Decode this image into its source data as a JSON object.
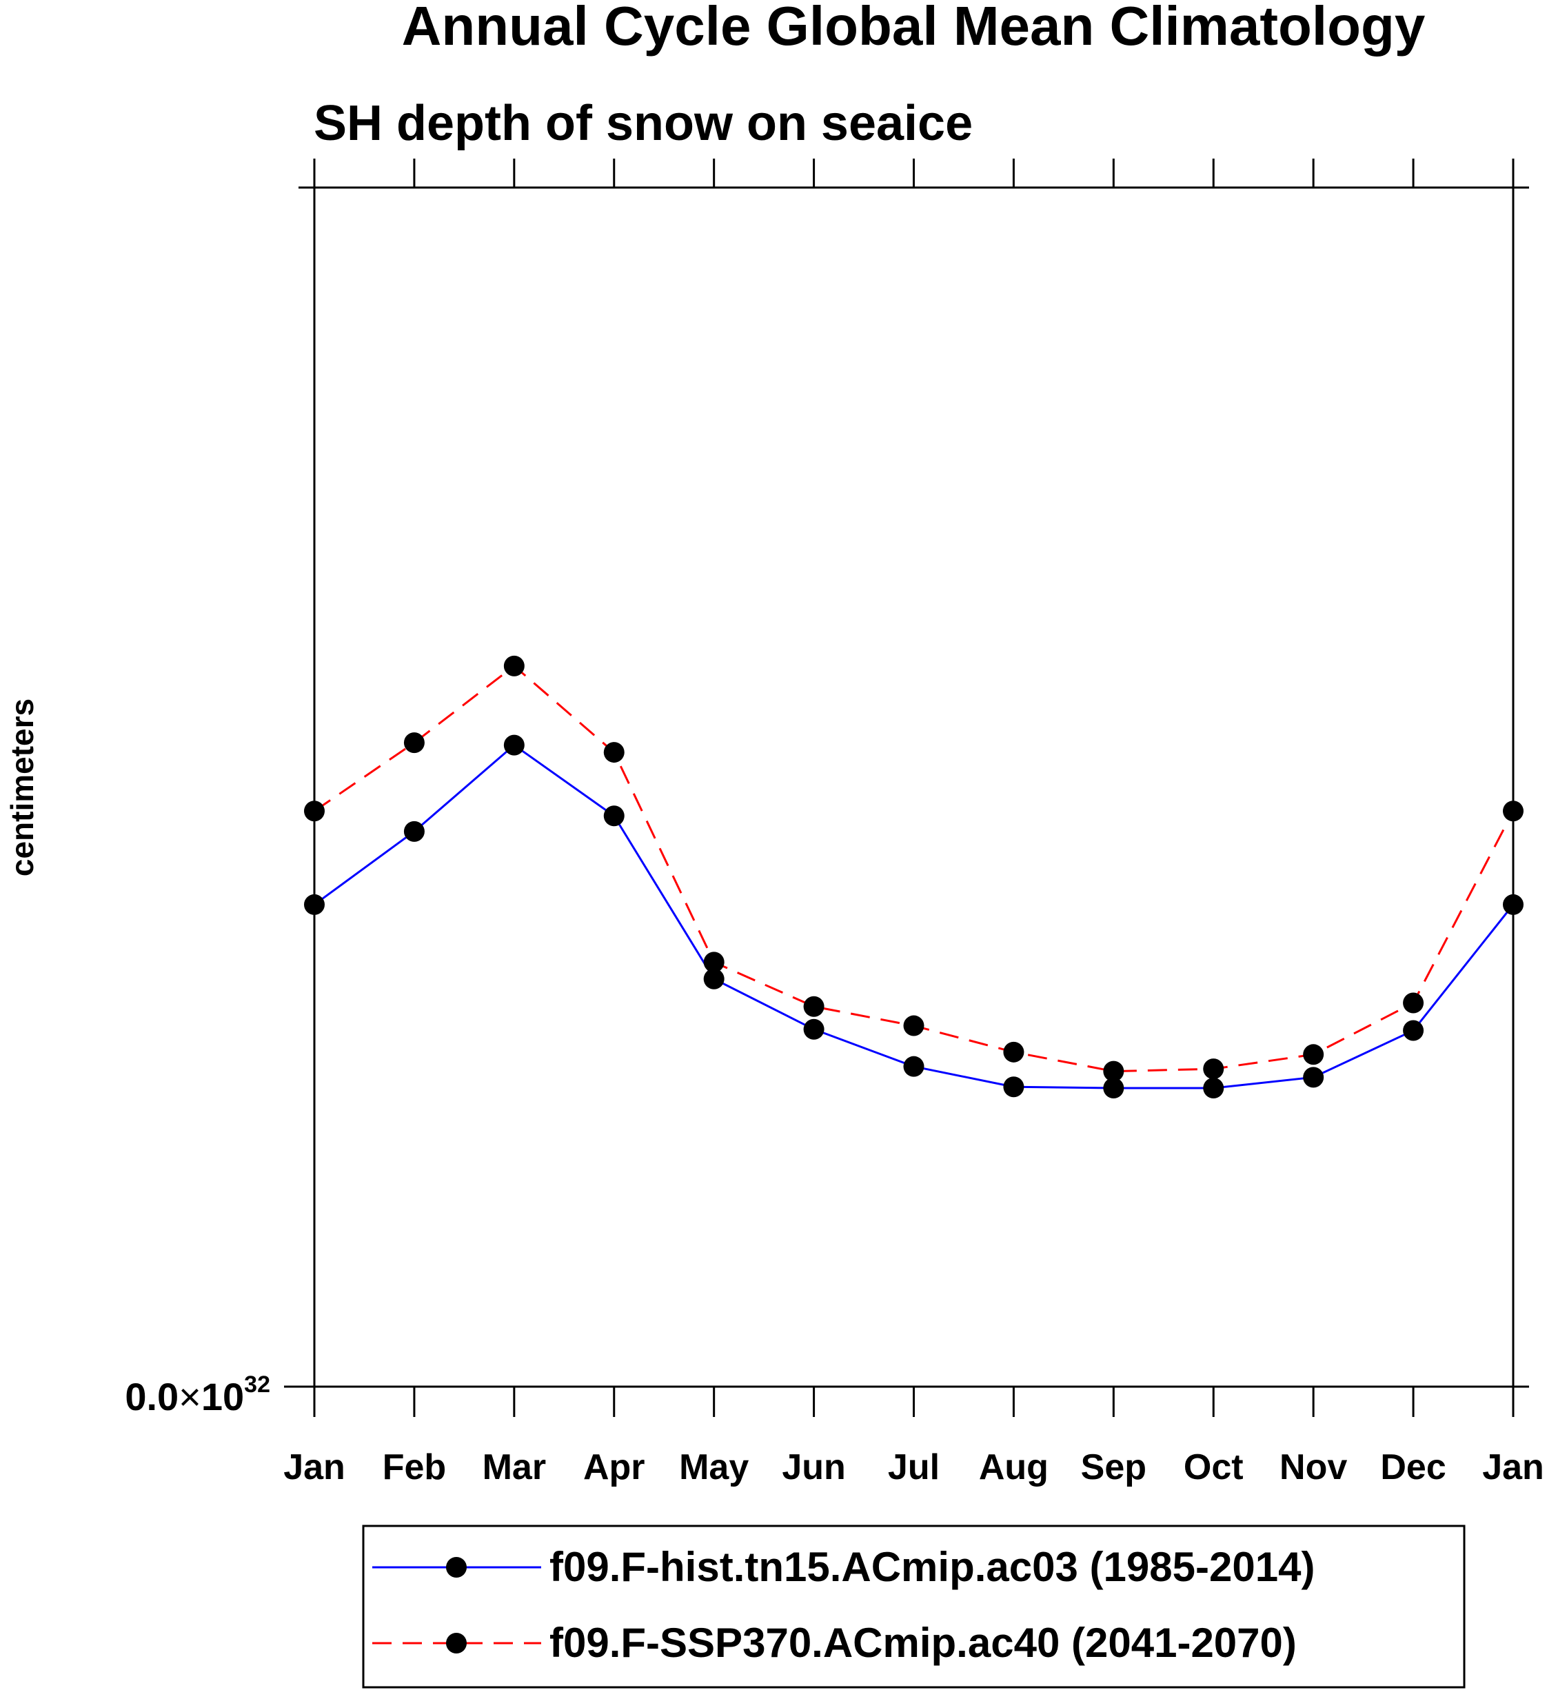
{
  "chart_data": {
    "type": "line",
    "title": "Annual Cycle Global Mean Climatology",
    "subtitle": "SH depth of snow on seaice",
    "ylabel": "centimeters",
    "xlabel": "",
    "categories": [
      "Jan",
      "Feb",
      "Mar",
      "Apr",
      "May",
      "Jun",
      "Jul",
      "Aug",
      "Sep",
      "Oct",
      "Nov",
      "Dec",
      "Jan"
    ],
    "y_tick_labels": [
      {
        "mantissa": "0.0",
        "times": "×",
        "base": "10",
        "exponent": "32",
        "value": 0
      }
    ],
    "ylim": [
      0,
      100
    ],
    "grid": false,
    "legend_position": "bottom",
    "series": [
      {
        "name": "f09.F-hist.tn15.ACmip.ac03 (1985-2014)",
        "color": "#0000ff",
        "line_style": "solid",
        "marker": "filled-circle",
        "values": [
          40.2,
          46.3,
          53.5,
          47.6,
          34.0,
          29.8,
          26.7,
          25.0,
          24.9,
          24.9,
          25.8,
          29.7,
          40.2
        ]
      },
      {
        "name": "f09.F-SSP370.ACmip.ac40 (2041-2070)",
        "color": "#ff0000",
        "line_style": "dashed",
        "marker": "filled-circle",
        "values": [
          48.0,
          53.7,
          60.1,
          52.9,
          35.4,
          31.7,
          30.1,
          27.9,
          26.3,
          26.5,
          27.7,
          32.0,
          48.0
        ]
      }
    ]
  }
}
